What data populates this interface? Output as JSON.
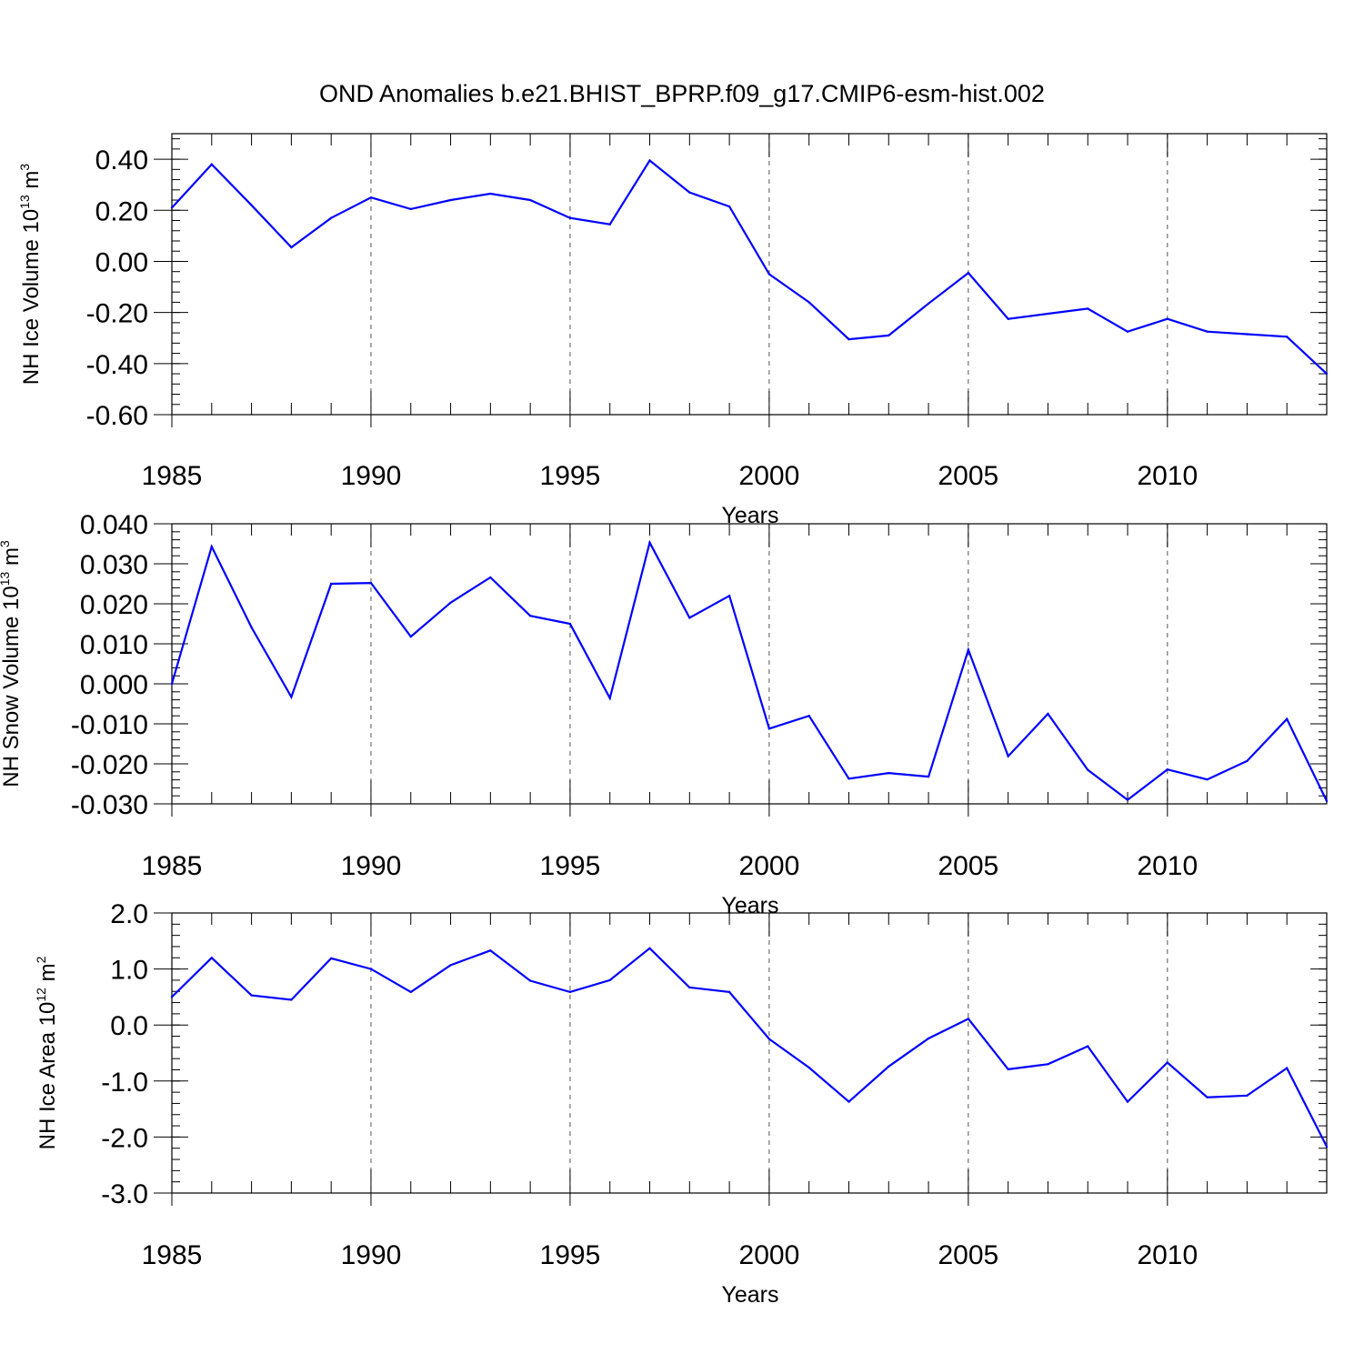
{
  "title": "OND Anomalies b.e21.BHIST_BPRP.f09_g17.CMIP6-esm-hist.002",
  "colors": {
    "series": "#0000ff",
    "axis": "#000000",
    "grid": "#555555"
  },
  "chart_data": [
    {
      "type": "line",
      "ylabel": {
        "prefix": "NH Ice Volume 10",
        "exp": "13",
        "unit": " m",
        "unit_exp": "3"
      },
      "xlabel": "Years",
      "xlim": [
        1985,
        2014
      ],
      "xticks": [
        1985,
        1990,
        1995,
        2000,
        2005,
        2010
      ],
      "ylim": [
        -0.6,
        0.5
      ],
      "yticks": [
        "0.40",
        "0.20",
        "0.00",
        "-0.20",
        "-0.40",
        "-0.60"
      ],
      "grid": "vertical dashed",
      "x": [
        1985,
        1986,
        1987,
        1988,
        1989,
        1990,
        1991,
        1992,
        1993,
        1994,
        1995,
        1996,
        1997,
        1998,
        1999,
        2000,
        2001,
        2002,
        2003,
        2004,
        2005,
        2006,
        2007,
        2008,
        2009,
        2010,
        2011,
        2012,
        2013,
        2014
      ],
      "values": [
        0.21,
        0.38,
        0.22,
        0.055,
        0.17,
        0.25,
        0.205,
        0.24,
        0.265,
        0.24,
        0.17,
        0.145,
        0.395,
        0.27,
        0.215,
        -0.05,
        -0.16,
        -0.305,
        -0.29,
        -0.165,
        -0.045,
        -0.225,
        -0.205,
        -0.185,
        -0.275,
        -0.225,
        -0.275,
        -0.285,
        -0.295,
        -0.44
      ]
    },
    {
      "type": "line",
      "ylabel": {
        "prefix": "NH Snow Volume 10",
        "exp": "13",
        "unit": " m",
        "unit_exp": "3"
      },
      "xlabel": "Years",
      "xlim": [
        1985,
        2014
      ],
      "xticks": [
        1985,
        1990,
        1995,
        2000,
        2005,
        2010
      ],
      "ylim": [
        -0.03,
        0.04
      ],
      "yticks": [
        "0.040",
        "0.030",
        "0.020",
        "0.010",
        "0.000",
        "-0.010",
        "-0.020",
        "-0.030"
      ],
      "grid": "vertical dashed",
      "x": [
        1985,
        1986,
        1987,
        1988,
        1989,
        1990,
        1991,
        1992,
        1993,
        1994,
        1995,
        1996,
        1997,
        1998,
        1999,
        2000,
        2001,
        2002,
        2003,
        2004,
        2005,
        2006,
        2007,
        2008,
        2009,
        2010,
        2011,
        2012,
        2013,
        2014
      ],
      "values": [
        0.0,
        0.0343,
        0.0141,
        -0.0033,
        0.025,
        0.0252,
        0.0118,
        0.0203,
        0.0266,
        0.017,
        0.015,
        -0.0036,
        0.0353,
        0.0165,
        0.022,
        -0.0112,
        -0.008,
        -0.0237,
        -0.0223,
        -0.0232,
        0.0085,
        -0.0181,
        -0.0075,
        -0.0215,
        -0.029,
        -0.0214,
        -0.0239,
        -0.0193,
        -0.0088,
        -0.0293
      ]
    },
    {
      "type": "line",
      "ylabel": {
        "prefix": "NH Ice Area 10",
        "exp": "12",
        "unit": " m",
        "unit_exp": "2"
      },
      "xlabel": "Years",
      "xlim": [
        1985,
        2014
      ],
      "xticks": [
        1985,
        1990,
        1995,
        2000,
        2005,
        2010
      ],
      "ylim": [
        -3.0,
        2.0
      ],
      "yticks": [
        "2.0",
        "1.0",
        "0.0",
        "-1.0",
        "-2.0",
        "-3.0"
      ],
      "grid": "vertical dashed",
      "x": [
        1985,
        1986,
        1987,
        1988,
        1989,
        1990,
        1991,
        1992,
        1993,
        1994,
        1995,
        1996,
        1997,
        1998,
        1999,
        2000,
        2001,
        2002,
        2003,
        2004,
        2005,
        2006,
        2007,
        2008,
        2009,
        2010,
        2011,
        2012,
        2013,
        2014
      ],
      "values": [
        0.5,
        1.2,
        0.53,
        0.45,
        1.19,
        1.0,
        0.59,
        1.07,
        1.33,
        0.79,
        0.59,
        0.8,
        1.37,
        0.67,
        0.59,
        -0.25,
        -0.76,
        -1.37,
        -0.74,
        -0.24,
        0.11,
        -0.79,
        -0.7,
        -0.38,
        -1.37,
        -0.67,
        -1.29,
        -1.26,
        -0.77,
        -2.17
      ]
    }
  ]
}
